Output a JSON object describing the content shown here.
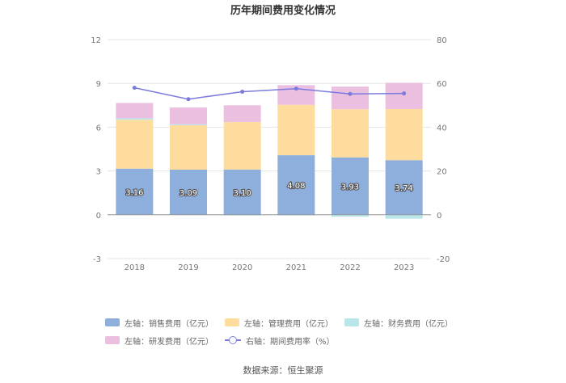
{
  "chart_data": {
    "type": "bar",
    "title": "历年期间费用变化情况",
    "categories": [
      "2018",
      "2019",
      "2020",
      "2021",
      "2022",
      "2023"
    ],
    "left_axis": {
      "min": -3,
      "max": 12,
      "ticks": [
        "-3",
        "0",
        "3",
        "6",
        "9",
        "12"
      ]
    },
    "right_axis": {
      "min": -20,
      "max": 80,
      "ticks": [
        "-20",
        "0",
        "20",
        "40",
        "60",
        "80"
      ]
    },
    "series": [
      {
        "name": "左轴：销售费用（亿元）",
        "type": "stacked-bar",
        "color": "#8eaedb",
        "values": [
          3.16,
          3.09,
          3.1,
          4.08,
          3.93,
          3.74
        ],
        "labels": [
          "3.16",
          "3.09",
          "3.10",
          "4.08",
          "3.93",
          "3.74"
        ]
      },
      {
        "name": "左轴：管理费用（亿元）",
        "type": "stacked-bar",
        "color": "#fedc9e",
        "values": [
          3.35,
          3.05,
          3.25,
          3.45,
          3.3,
          3.5
        ]
      },
      {
        "name": "左轴：财务费用（亿元）",
        "type": "stacked-bar",
        "color": "#b8e6e9",
        "values": [
          0.1,
          0.06,
          -0.05,
          -0.05,
          -0.14,
          -0.27
        ]
      },
      {
        "name": "左轴：研发费用（亿元）",
        "type": "stacked-bar",
        "color": "#ebbfdf",
        "values": [
          1.05,
          1.15,
          1.15,
          1.35,
          1.55,
          1.8
        ]
      },
      {
        "name": "右轴：期间费用率（%）",
        "type": "line",
        "color": "#7b7bde",
        "values": [
          58.0,
          52.8,
          56.2,
          57.6,
          55.2,
          55.4
        ]
      }
    ],
    "grid": true,
    "legend_position": "bottom"
  },
  "source": "数据来源：恒生聚源"
}
